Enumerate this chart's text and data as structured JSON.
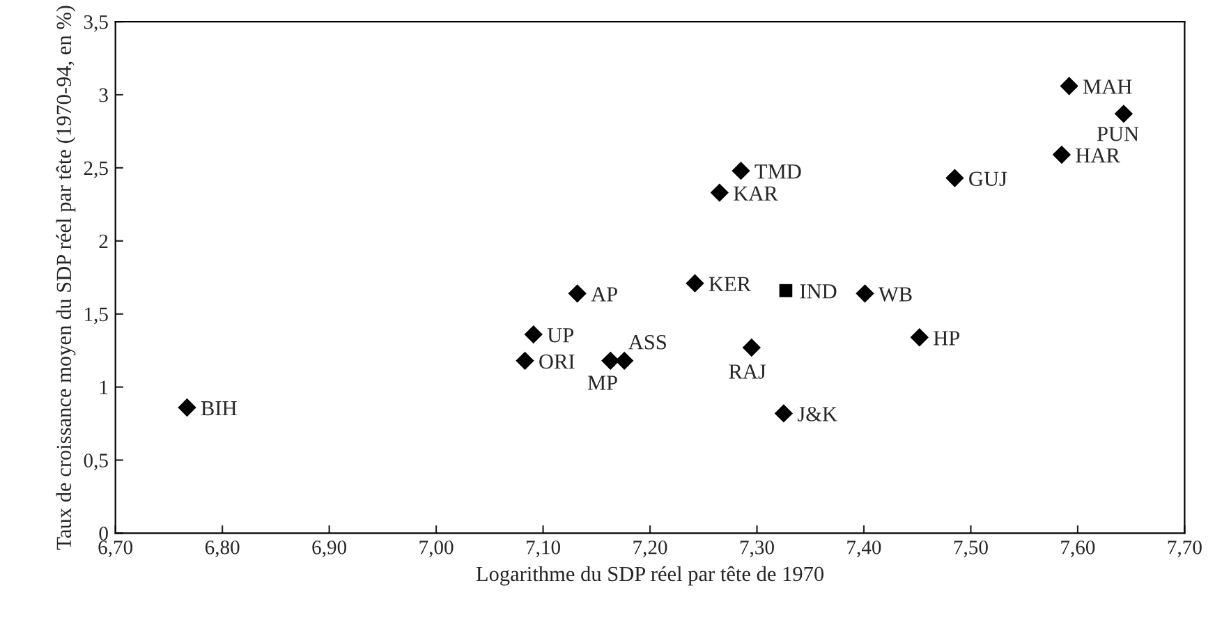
{
  "chart_data": {
    "type": "scatter",
    "xlabel": "Logarithme du SDP réel par tête de 1970",
    "ylabel": "Taux de croissance moyen du SDP réel par tête (1970-94, en %)",
    "series": [
      {
        "color": "#000000",
        "marker": "diamond",
        "x": [
          6.767,
          7.083,
          7.091,
          7.132,
          7.163,
          7.176,
          7.242,
          7.265,
          7.285,
          7.295,
          7.325,
          7.401,
          7.452,
          7.485,
          7.585,
          7.592,
          7.643
        ],
        "values": [
          0.86,
          1.18,
          1.36,
          1.64,
          1.18,
          1.18,
          1.71,
          2.33,
          2.48,
          1.27,
          0.82,
          1.64,
          1.34,
          2.43,
          2.59,
          3.06,
          2.87
        ]
      },
      {
        "color": "#000000",
        "marker": "square",
        "x": [
          7.327
        ],
        "values": [
          1.66
        ]
      }
    ],
    "annotations": [
      {
        "text": "BIH",
        "x": 6.767,
        "y": 0.86
      },
      {
        "text": "ORI",
        "x": 7.083,
        "y": 1.18
      },
      {
        "text": "UP",
        "x": 7.091,
        "y": 1.36
      },
      {
        "text": "AP",
        "x": 7.132,
        "y": 1.64
      },
      {
        "text": "MP",
        "x": 7.163,
        "y": 1.18
      },
      {
        "text": "ASS",
        "x": 7.176,
        "y": 1.18
      },
      {
        "text": "KER",
        "x": 7.242,
        "y": 1.71
      },
      {
        "text": "KAR",
        "x": 7.265,
        "y": 2.33
      },
      {
        "text": "TMD",
        "x": 7.285,
        "y": 2.48
      },
      {
        "text": "RAJ",
        "x": 7.295,
        "y": 1.27
      },
      {
        "text": "J&K",
        "x": 7.325,
        "y": 0.82
      },
      {
        "text": "IND",
        "x": 7.327,
        "y": 1.66
      },
      {
        "text": "WB",
        "x": 7.401,
        "y": 1.64
      },
      {
        "text": "HP",
        "x": 7.452,
        "y": 1.34
      },
      {
        "text": "GUJ",
        "x": 7.485,
        "y": 2.43
      },
      {
        "text": "HAR",
        "x": 7.585,
        "y": 2.59
      },
      {
        "text": "MAH",
        "x": 7.592,
        "y": 3.06
      },
      {
        "text": "PUN",
        "x": 7.643,
        "y": 2.87
      }
    ],
    "xlim": [
      6.7,
      7.7
    ],
    "xticks": [
      {
        "value": 6.7,
        "label": "6,70"
      },
      {
        "value": 6.8,
        "label": "6,80"
      },
      {
        "value": 6.9,
        "label": "6,90"
      },
      {
        "value": 7.0,
        "label": "7,00"
      },
      {
        "value": 7.1,
        "label": "7,10"
      },
      {
        "value": 7.2,
        "label": "7,20"
      },
      {
        "value": 7.3,
        "label": "7,30"
      },
      {
        "value": 7.4,
        "label": "7,40"
      },
      {
        "value": 7.5,
        "label": "7,50"
      },
      {
        "value": 7.6,
        "label": "7,60"
      },
      {
        "value": 7.7,
        "label": "7,70"
      }
    ],
    "ylim": [
      0,
      3.5
    ],
    "yticks": [
      0,
      {
        "value": 0.5,
        "label": "0,5"
      },
      1,
      {
        "value": 1.5,
        "label": "1,5"
      },
      2,
      {
        "value": 2.5,
        "label": "2,5"
      },
      3,
      {
        "value": 3.5,
        "label": "3,5"
      }
    ],
    "grid": false,
    "legend": false
  }
}
